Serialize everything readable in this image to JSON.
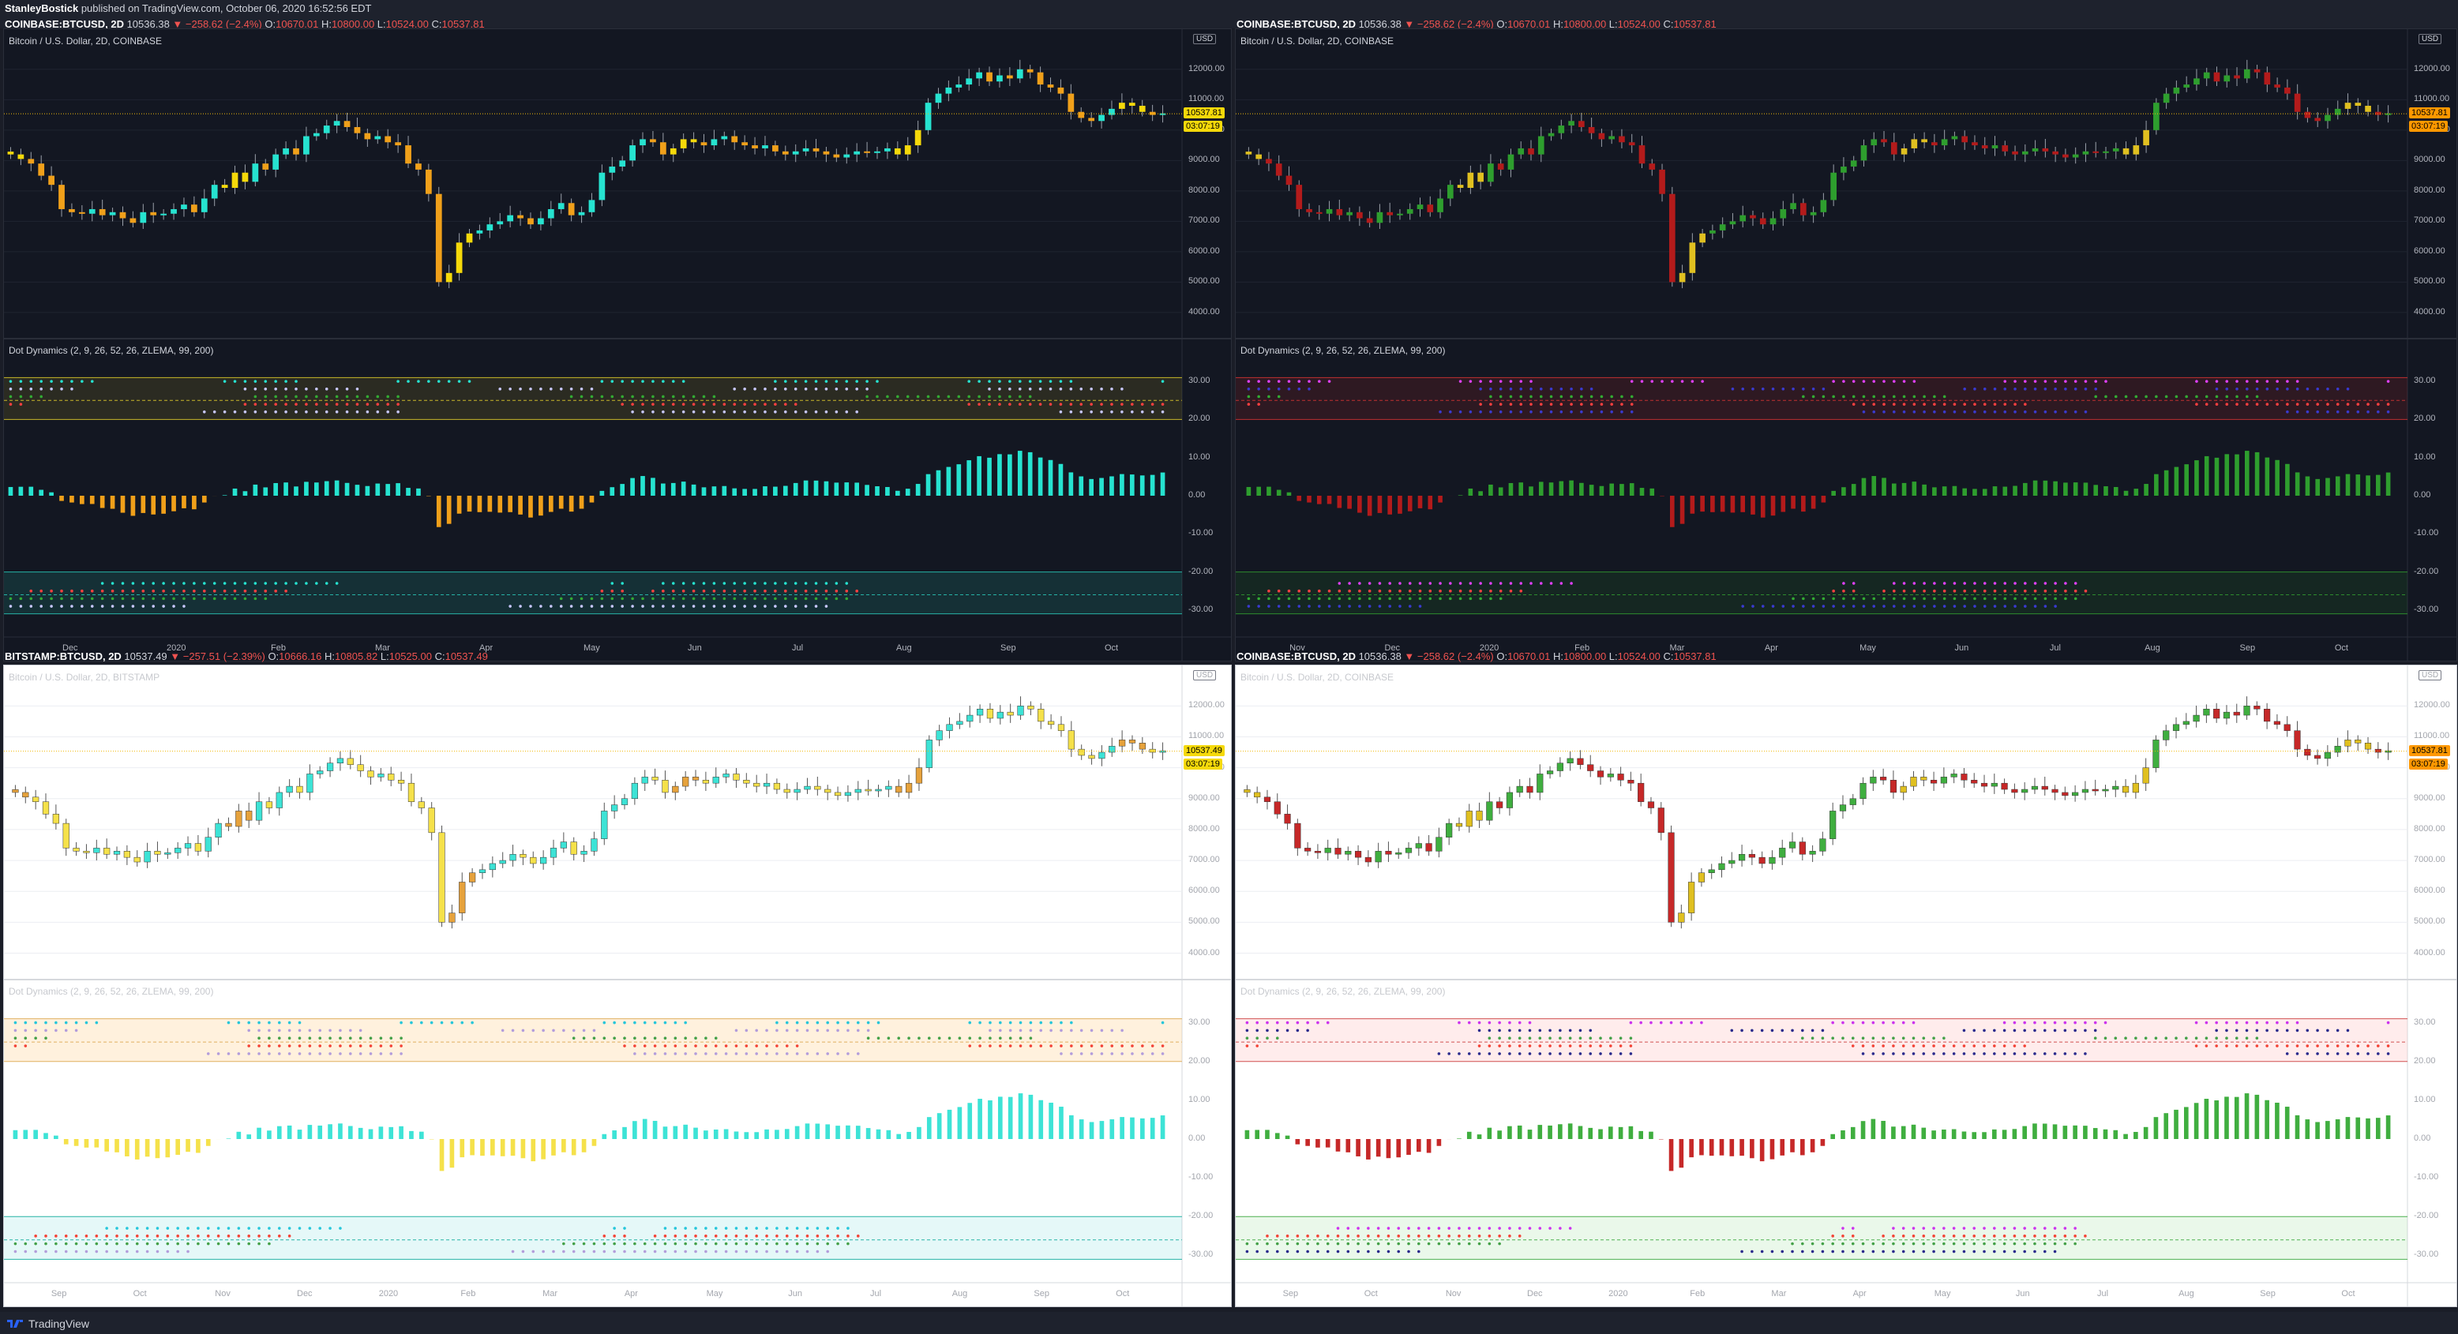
{
  "header": {
    "author": "StanleyBostick",
    "published": "published on TradingView.com, October 06, 2020 16:52:56 EDT"
  },
  "footer": {
    "brand": "TradingView"
  },
  "colors": {
    "dark_bg": "#131722",
    "light_bg": "#ffffff",
    "up_teal": "#26e3d0",
    "down_orange": "#f0a01a",
    "neutral_yellow": "#f5d90a",
    "up_green": "#2e9e2e",
    "down_red": "#b31b1b",
    "magenta": "#e040fb",
    "navy": "#2a2a8c"
  },
  "chart_data": [
    {
      "id": "top-left",
      "type": "candlestick",
      "symbol": "COINBASE:BTCUSD",
      "interval": "2D",
      "ticker": {
        "last": "10536.38",
        "change": "−258.62 (−2.4%)",
        "O": "10670.01",
        "H": "10800.00",
        "L": "10524.00",
        "C": "10537.81"
      },
      "price_title": "Bitcoin / U.S. Dollar, 2D, COINBASE",
      "indicator_title": "Dot Dynamics (2, 9, 26, 52, 26, ZLEMA, 99, 200)",
      "theme": "dark",
      "palette": "teal-orange",
      "price_ticks": [
        "12000.00",
        "11000.00",
        "10000.00",
        "9000.00",
        "8000.00",
        "7000.00",
        "6000.00",
        "5000.00",
        "4000.00"
      ],
      "ind_ticks": [
        "30.00",
        "20.00",
        "10.00",
        "0.00",
        "-10.00",
        "-20.00",
        "-30.00"
      ],
      "price_label": "10537.81",
      "countdown": "03:07:19",
      "x_labels": [
        "Dec",
        "2020",
        "Feb",
        "Mar",
        "Apr",
        "May",
        "Jun",
        "Jul",
        "Aug",
        "Sep",
        "Oct"
      ]
    },
    {
      "id": "top-right",
      "type": "candlestick",
      "symbol": "COINBASE:BTCUSD",
      "interval": "2D",
      "ticker": {
        "last": "10536.38",
        "change": "−258.62 (−2.4%)",
        "O": "10670.01",
        "H": "10800.00",
        "L": "10524.00",
        "C": "10537.81"
      },
      "price_title": "Bitcoin / U.S. Dollar, 2D, COINBASE",
      "indicator_title": "Dot Dynamics (2, 9, 26, 52, 26, ZLEMA, 99, 200)",
      "theme": "dark",
      "palette": "green-red",
      "price_ticks": [
        "12000.00",
        "11000.00",
        "10000.00",
        "9000.00",
        "8000.00",
        "7000.00",
        "6000.00",
        "5000.00",
        "4000.00"
      ],
      "ind_ticks": [
        "30.00",
        "20.00",
        "10.00",
        "0.00",
        "-10.00",
        "-20.00",
        "-30.00"
      ],
      "price_label": "10537.81",
      "countdown": "03:07:19",
      "x_labels": [
        "Nov",
        "Dec",
        "2020",
        "Feb",
        "Mar",
        "Apr",
        "May",
        "Jun",
        "Jul",
        "Aug",
        "Sep",
        "Oct"
      ]
    },
    {
      "id": "bottom-left",
      "type": "candlestick",
      "symbol": "BITSTAMP:BTCUSD",
      "interval": "2D",
      "ticker": {
        "last": "10537.49",
        "change": "−257.51 (−2.39%)",
        "O": "10666.16",
        "H": "10805.82",
        "L": "10525.00",
        "C": "10537.49"
      },
      "price_title": "Bitcoin / U.S. Dollar, 2D, BITSTAMP",
      "indicator_title": "Dot Dynamics (2, 9, 26, 52, 26, ZLEMA, 99, 200)",
      "theme": "light",
      "palette": "teal-yellow",
      "price_ticks": [
        "12000.00",
        "11000.00",
        "10000.00",
        "9000.00",
        "8000.00",
        "7000.00",
        "6000.00",
        "5000.00",
        "4000.00"
      ],
      "ind_ticks": [
        "30.00",
        "20.00",
        "10.00",
        "0.00",
        "-10.00",
        "-20.00",
        "-30.00"
      ],
      "price_label": "10537.49",
      "countdown": "03:07:19",
      "x_labels": [
        "Sep",
        "Oct",
        "Nov",
        "Dec",
        "2020",
        "Feb",
        "Mar",
        "Apr",
        "May",
        "Jun",
        "Jul",
        "Aug",
        "Sep",
        "Oct"
      ]
    },
    {
      "id": "bottom-right",
      "type": "candlestick",
      "symbol": "COINBASE:BTCUSD",
      "interval": "2D",
      "ticker": {
        "last": "10536.38",
        "change": "−258.62 (−2.4%)",
        "O": "10670.01",
        "H": "10800.00",
        "L": "10524.00",
        "C": "10537.81"
      },
      "price_title": "Bitcoin / U.S. Dollar, 2D, COINBASE",
      "indicator_title": "Dot Dynamics (2, 9, 26, 52, 26, ZLEMA, 99, 200)",
      "theme": "light",
      "palette": "green-red-light",
      "price_ticks": [
        "12000.00",
        "11000.00",
        "10000.00",
        "9000.00",
        "8000.00",
        "7000.00",
        "6000.00",
        "5000.00",
        "4000.00"
      ],
      "ind_ticks": [
        "30.00",
        "20.00",
        "10.00",
        "0.00",
        "-10.00",
        "-20.00",
        "-30.00"
      ],
      "price_label": "10537.81",
      "countdown": "03:07:19",
      "x_labels": [
        "Sep",
        "Oct",
        "Nov",
        "Dec",
        "2020",
        "Feb",
        "Mar",
        "Apr",
        "May",
        "Jun",
        "Jul",
        "Aug",
        "Sep",
        "Oct"
      ]
    }
  ],
  "price_path": [
    9200,
    9050,
    8900,
    8500,
    8200,
    7400,
    7300,
    7250,
    7400,
    7200,
    7300,
    7100,
    6950,
    7300,
    7200,
    7250,
    7400,
    7550,
    7300,
    7750,
    8200,
    8100,
    8600,
    8300,
    8900,
    8700,
    9200,
    9400,
    9200,
    9800,
    9900,
    10150,
    10300,
    10100,
    9900,
    9700,
    9800,
    9600,
    9500,
    8900,
    8700,
    7900,
    5000,
    5300,
    6300,
    6600,
    6700,
    6900,
    7000,
    7200,
    7100,
    6900,
    7100,
    7400,
    7600,
    7200,
    7300,
    7700,
    8600,
    8800,
    9000,
    9500,
    9700,
    9600,
    9200,
    9400,
    9700,
    9600,
    9500,
    9700,
    9800,
    9600,
    9500,
    9400,
    9500,
    9300,
    9200,
    9300,
    9400,
    9300,
    9200,
    9100,
    9200,
    9300,
    9250,
    9300,
    9400,
    9200,
    9500,
    10000,
    10900,
    11200,
    11400,
    11500,
    11700,
    11900,
    11600,
    11800,
    11700,
    12000,
    11900,
    11500,
    11400,
    11200,
    10600,
    10400,
    10300,
    10500,
    10700,
    10900,
    10800,
    10600,
    10500,
    10550
  ]
}
